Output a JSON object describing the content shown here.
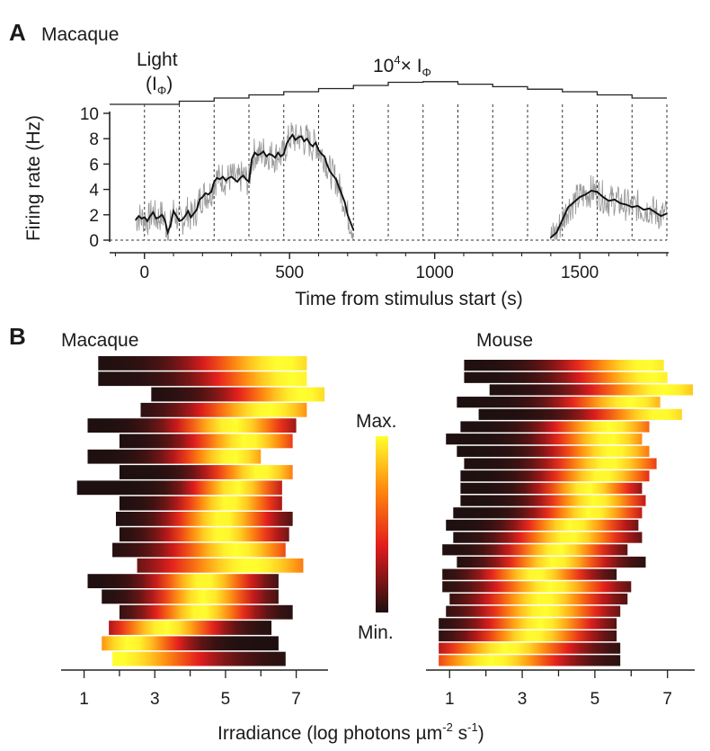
{
  "panel_a": {
    "letter": "A",
    "title": "Macaque",
    "stimulus_label_1": "Light",
    "stimulus_label_2": "(I",
    "stimulus_label_2_sub": "Φ",
    "stimulus_label_2_end": ")",
    "stimulus_label_3": "10",
    "stimulus_label_3_sup": "4",
    "stimulus_label_3_end": "× I",
    "stimulus_label_3_sub": "Φ"
  },
  "panel_b": {
    "letter": "B",
    "left_title": "Macaque",
    "right_title": "Mouse",
    "right_title_color": "#e0242b",
    "colorbar_max": "Max.",
    "colorbar_min": "Min.",
    "xlabel_main": "Irradiance (log photons µm",
    "xlabel_sup1": "-2",
    "xlabel_mid": " s",
    "xlabel_sup2": "-1",
    "xlabel_end": ")"
  },
  "chart_data": [
    {
      "type": "line",
      "panel": "A",
      "xlabel": "Time from stimulus start (s)",
      "ylabel": "Firing rate (Hz)",
      "xlim": [
        -120,
        1800
      ],
      "ylim": [
        0,
        10
      ],
      "xticks": [
        0,
        500,
        1000,
        1500
      ],
      "yticks": [
        0,
        2,
        4,
        6,
        8,
        10
      ],
      "step_boundaries": [
        0,
        120,
        240,
        360,
        480,
        600,
        720,
        840,
        960,
        1080,
        1200,
        1320,
        1440,
        1560,
        1680,
        1800
      ],
      "series": [
        {
          "x": [
            -30,
            -20,
            -10,
            0,
            10,
            20,
            30,
            40,
            50,
            60,
            70,
            80,
            90,
            100,
            110,
            120,
            130,
            140,
            150,
            160,
            170,
            180,
            190,
            200,
            210,
            220,
            230,
            240,
            250,
            260,
            270,
            280,
            290,
            300,
            310,
            320,
            330,
            340,
            350,
            360,
            370,
            380,
            390,
            400,
            410,
            420,
            430,
            440,
            450,
            460,
            470,
            480,
            490,
            500,
            510,
            520,
            530,
            540,
            550,
            560,
            570,
            580,
            590,
            600,
            610,
            620,
            630,
            640,
            650,
            660,
            670,
            680,
            690,
            700,
            710,
            720,
            1400,
            1420,
            1440,
            1460,
            1480,
            1500,
            1520,
            1540,
            1560,
            1580,
            1600,
            1620,
            1640,
            1660,
            1680,
            1700,
            1720,
            1740,
            1760,
            1780,
            1800
          ],
          "y": [
            1.6,
            1.9,
            1.7,
            1.8,
            1.5,
            1.9,
            2.2,
            1.7,
            1.8,
            2.0,
            1.6,
            0.6,
            1.2,
            2.3,
            1.9,
            1.5,
            1.6,
            1.9,
            2.3,
            1.8,
            2.1,
            2.4,
            3.2,
            3.4,
            3.7,
            3.6,
            3.8,
            4.6,
            4.9,
            4.8,
            5.0,
            4.7,
            4.9,
            5.0,
            4.8,
            4.6,
            4.9,
            5.1,
            4.8,
            4.6,
            6.4,
            6.9,
            6.7,
            6.8,
            7.0,
            6.6,
            6.8,
            6.7,
            6.5,
            6.9,
            6.6,
            6.8,
            7.6,
            8.0,
            8.3,
            7.9,
            8.1,
            8.2,
            7.8,
            8.0,
            7.6,
            7.4,
            7.7,
            7.1,
            6.8,
            6.6,
            5.9,
            5.4,
            5.1,
            4.8,
            4.2,
            3.6,
            3.0,
            2.0,
            1.4,
            0.8,
            0.2,
            0.6,
            1.6,
            2.6,
            3.0,
            3.4,
            3.6,
            3.9,
            3.8,
            3.4,
            3.1,
            3.2,
            2.9,
            2.8,
            2.6,
            2.7,
            2.4,
            2.5,
            2.2,
            1.9,
            2.1
          ]
        }
      ]
    },
    {
      "type": "heatmap",
      "panel": "B-left",
      "title": "Macaque",
      "xlim": [
        0.35,
        7.9
      ],
      "xticks": [
        1,
        3,
        5,
        7
      ],
      "colorbar": [
        "Max.",
        "Min."
      ],
      "rows": [
        {
          "start": 1.4,
          "end": 7.3,
          "peak": 6.6,
          "width": 2.2
        },
        {
          "start": 1.4,
          "end": 7.3,
          "peak": 6.9,
          "width": 2.2
        },
        {
          "start": 2.9,
          "end": 7.8,
          "peak": 7.2,
          "width": 1.9
        },
        {
          "start": 2.6,
          "end": 7.3,
          "peak": 6.2,
          "width": 1.9
        },
        {
          "start": 1.1,
          "end": 7.0,
          "peak": 5.2,
          "width": 1.5
        },
        {
          "start": 2.0,
          "end": 6.9,
          "peak": 5.6,
          "width": 1.5
        },
        {
          "start": 1.1,
          "end": 6.0,
          "peak": 5.2,
          "width": 1.5
        },
        {
          "start": 2.0,
          "end": 6.9,
          "peak": 6.0,
          "width": 1.4
        },
        {
          "start": 0.8,
          "end": 6.6,
          "peak": 5.3,
          "width": 1.2
        },
        {
          "start": 2.0,
          "end": 6.6,
          "peak": 5.1,
          "width": 1.3
        },
        {
          "start": 1.9,
          "end": 6.9,
          "peak": 4.9,
          "width": 1.3
        },
        {
          "start": 2.0,
          "end": 6.8,
          "peak": 4.9,
          "width": 1.4
        },
        {
          "start": 1.8,
          "end": 6.7,
          "peak": 5.3,
          "width": 1.7
        },
        {
          "start": 2.5,
          "end": 7.2,
          "peak": 5.7,
          "width": 2.3
        },
        {
          "start": 1.1,
          "end": 6.5,
          "peak": 4.4,
          "width": 1.3
        },
        {
          "start": 1.5,
          "end": 6.5,
          "peak": 4.4,
          "width": 1.3
        },
        {
          "start": 2.0,
          "end": 6.9,
          "peak": 4.3,
          "width": 1.3
        },
        {
          "start": 1.7,
          "end": 6.3,
          "peak": 3.3,
          "width": 1.4
        },
        {
          "start": 1.5,
          "end": 6.5,
          "peak": 2.3,
          "width": 1.4
        },
        {
          "start": 1.8,
          "end": 6.7,
          "peak": 1.9,
          "width": 2.4
        }
      ]
    },
    {
      "type": "heatmap",
      "panel": "B-right",
      "title": "Mouse",
      "xlim": [
        0.35,
        7.75
      ],
      "xticks": [
        1,
        3,
        5,
        7
      ],
      "rows": [
        {
          "start": 1.4,
          "end": 6.9,
          "peak": 6.4,
          "width": 2.0
        },
        {
          "start": 1.4,
          "end": 7.0,
          "peak": 6.6,
          "width": 2.0
        },
        {
          "start": 2.1,
          "end": 7.7,
          "peak": 6.9,
          "width": 2.0
        },
        {
          "start": 1.2,
          "end": 6.8,
          "peak": 6.0,
          "width": 1.7
        },
        {
          "start": 1.8,
          "end": 7.4,
          "peak": 6.8,
          "width": 1.8
        },
        {
          "start": 1.3,
          "end": 6.5,
          "peak": 5.4,
          "width": 1.5
        },
        {
          "start": 0.9,
          "end": 6.3,
          "peak": 5.4,
          "width": 1.5
        },
        {
          "start": 1.2,
          "end": 6.5,
          "peak": 5.5,
          "width": 1.5
        },
        {
          "start": 1.4,
          "end": 6.7,
          "peak": 5.4,
          "width": 1.5
        },
        {
          "start": 1.3,
          "end": 6.5,
          "peak": 5.2,
          "width": 1.4
        },
        {
          "start": 1.3,
          "end": 6.3,
          "peak": 4.8,
          "width": 1.2
        },
        {
          "start": 1.3,
          "end": 6.4,
          "peak": 5.0,
          "width": 1.3
        },
        {
          "start": 1.1,
          "end": 6.3,
          "peak": 4.9,
          "width": 1.3
        },
        {
          "start": 0.9,
          "end": 6.2,
          "peak": 4.4,
          "width": 1.3
        },
        {
          "start": 1.1,
          "end": 6.3,
          "peak": 4.3,
          "width": 1.4
        },
        {
          "start": 0.8,
          "end": 5.9,
          "peak": 4.0,
          "width": 1.3
        },
        {
          "start": 1.2,
          "end": 6.4,
          "peak": 3.9,
          "width": 1.3
        },
        {
          "start": 0.8,
          "end": 5.6,
          "peak": 3.4,
          "width": 1.3
        },
        {
          "start": 0.8,
          "end": 6.0,
          "peak": 3.8,
          "width": 1.5
        },
        {
          "start": 1.0,
          "end": 5.9,
          "peak": 3.6,
          "width": 1.5
        },
        {
          "start": 0.9,
          "end": 5.7,
          "peak": 3.6,
          "width": 1.5
        },
        {
          "start": 0.7,
          "end": 5.6,
          "peak": 3.5,
          "width": 1.4
        },
        {
          "start": 0.7,
          "end": 5.6,
          "peak": 3.3,
          "width": 1.4
        },
        {
          "start": 0.7,
          "end": 5.7,
          "peak": 2.6,
          "width": 1.7
        },
        {
          "start": 0.7,
          "end": 5.7,
          "peak": 2.2,
          "width": 1.8
        }
      ]
    }
  ]
}
